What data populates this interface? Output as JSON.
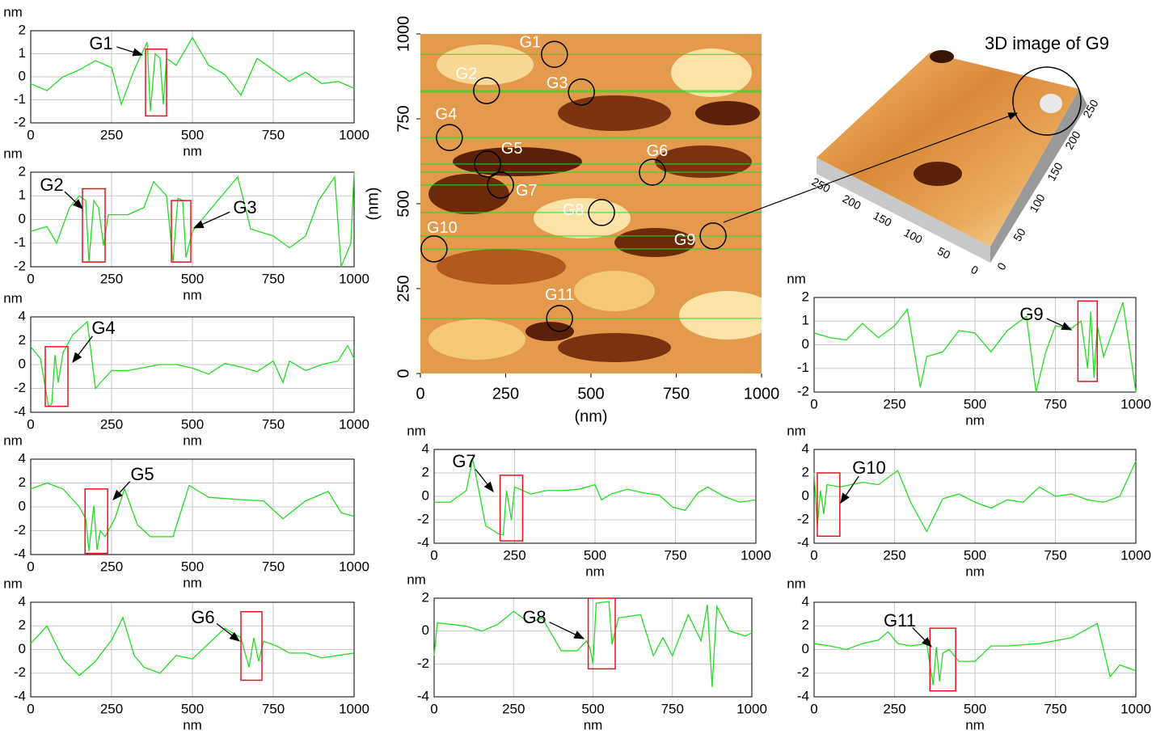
{
  "chart_data": [
    {
      "type": "line",
      "annotations": [
        "G1"
      ],
      "ylabel": "nm",
      "xlabel": "nm",
      "x": [
        0,
        50,
        100,
        150,
        200,
        250,
        280,
        320,
        360,
        370,
        385,
        400,
        410,
        420,
        450,
        500,
        550,
        600,
        650,
        700,
        750,
        800,
        850,
        900,
        950,
        1000
      ],
      "series": [
        {
          "color": "#22dd22",
          "values": [
            -0.3,
            -0.6,
            0,
            0.3,
            0.7,
            0.4,
            -1.2,
            0.3,
            1.5,
            -1.5,
            1.0,
            0.8,
            -1.2,
            0.8,
            0.5,
            1.7,
            0.5,
            0.1,
            -0.8,
            0.8,
            0.3,
            -0.2,
            0.2,
            -0.3,
            -0.2,
            -0.5
          ]
        }
      ],
      "xlim": [
        0,
        1000
      ],
      "ylim": [
        -2,
        2
      ],
      "xticks": [
        0,
        250,
        500,
        750,
        1000
      ],
      "yticks": [
        -2,
        -1,
        0,
        1,
        2
      ],
      "grid": true
    },
    {
      "type": "line",
      "annotations": [
        "G2",
        "G3"
      ],
      "ylabel": "nm",
      "xlabel": "nm",
      "x": [
        0,
        50,
        80,
        120,
        150,
        170,
        180,
        195,
        210,
        225,
        240,
        300,
        350,
        380,
        420,
        440,
        455,
        470,
        480,
        500,
        560,
        640,
        680,
        750,
        800,
        850,
        890,
        940,
        960,
        990,
        1000
      ],
      "series": [
        {
          "color": "#22dd22",
          "values": [
            -0.5,
            -0.3,
            -1.0,
            0.5,
            1.0,
            0.8,
            -1.8,
            0.8,
            0.5,
            -1.1,
            0.2,
            0.2,
            0.5,
            1.6,
            1.0,
            -1.8,
            0.9,
            0.8,
            -1.6,
            -0.5,
            0.5,
            1.8,
            -0.4,
            -0.7,
            -1.2,
            -0.7,
            0.8,
            1.8,
            -2.0,
            -1.0,
            2.0
          ]
        }
      ],
      "xlim": [
        0,
        1000
      ],
      "ylim": [
        -2,
        2
      ],
      "xticks": [
        0,
        250,
        500,
        750,
        1000
      ],
      "yticks": [
        -2,
        -1,
        0,
        1,
        2
      ],
      "grid": true
    },
    {
      "type": "line",
      "annotations": [
        "G4"
      ],
      "ylabel": "nm",
      "xlabel": "nm",
      "x": [
        0,
        30,
        55,
        65,
        75,
        85,
        100,
        130,
        175,
        200,
        250,
        300,
        400,
        450,
        500,
        550,
        600,
        650,
        700,
        750,
        780,
        800,
        850,
        900,
        950,
        980,
        1000
      ],
      "series": [
        {
          "color": "#22dd22",
          "values": [
            1.5,
            0.5,
            -3.5,
            -3.3,
            0.8,
            -1.5,
            1.0,
            2.5,
            3.6,
            -2.0,
            -0.5,
            -0.5,
            0,
            0,
            -0.3,
            -0.8,
            0.1,
            -0.2,
            -0.6,
            0.3,
            -1.5,
            0.3,
            -0.5,
            0,
            0.3,
            1.6,
            0.5
          ]
        }
      ],
      "xlim": [
        0,
        1000
      ],
      "ylim": [
        -4,
        4
      ],
      "xticks": [
        0,
        250,
        500,
        750,
        1000
      ],
      "yticks": [
        -4,
        -2,
        0,
        2,
        4
      ],
      "grid": true
    },
    {
      "type": "line",
      "annotations": [
        "G5"
      ],
      "ylabel": "nm",
      "xlabel": "nm",
      "x": [
        0,
        50,
        100,
        150,
        170,
        180,
        195,
        205,
        215,
        230,
        260,
        290,
        330,
        370,
        440,
        490,
        550,
        650,
        720,
        780,
        850,
        920,
        960,
        1000
      ],
      "series": [
        {
          "color": "#22dd22",
          "values": [
            1.5,
            2.0,
            1.5,
            0,
            -1.0,
            -3.7,
            0.1,
            -3.6,
            -2.0,
            -2.5,
            -1.0,
            1.5,
            -1.5,
            -2.5,
            -2.5,
            1.8,
            0.8,
            0.6,
            0.5,
            -1.0,
            0.5,
            1.3,
            -0.5,
            -0.8
          ]
        }
      ],
      "xlim": [
        0,
        1000
      ],
      "ylim": [
        -4,
        4
      ],
      "xticks": [
        0,
        250,
        500,
        750,
        1000
      ],
      "yticks": [
        -4,
        -2,
        0,
        2,
        4
      ],
      "grid": true
    },
    {
      "type": "line",
      "annotations": [
        "G6"
      ],
      "ylabel": "nm",
      "xlabel": "nm",
      "x": [
        0,
        50,
        100,
        150,
        200,
        250,
        285,
        320,
        350,
        400,
        450,
        500,
        550,
        600,
        650,
        675,
        690,
        705,
        720,
        760,
        800,
        850,
        900,
        950,
        1000
      ],
      "series": [
        {
          "color": "#22dd22",
          "values": [
            0.5,
            2.0,
            -0.8,
            -2.2,
            -1.0,
            0.8,
            2.7,
            -0.5,
            -1.5,
            -2.0,
            -0.5,
            -0.8,
            0.5,
            1.8,
            1.0,
            -1.5,
            1.0,
            -1.0,
            0.7,
            0.3,
            -0.3,
            -0.3,
            -0.7,
            -0.5,
            -0.3
          ]
        }
      ],
      "xlim": [
        0,
        1000
      ],
      "ylim": [
        -4,
        4
      ],
      "xticks": [
        0,
        250,
        500,
        750,
        1000
      ],
      "yticks": [
        -4,
        -2,
        0,
        2,
        4
      ],
      "grid": true
    },
    {
      "type": "line",
      "annotations": [
        "G7"
      ],
      "ylabel": "nm",
      "xlabel": "nm",
      "x": [
        0,
        50,
        100,
        120,
        160,
        200,
        215,
        225,
        240,
        250,
        300,
        350,
        400,
        450,
        500,
        520,
        550,
        600,
        650,
        700,
        740,
        780,
        820,
        850,
        900,
        950,
        1000
      ],
      "series": [
        {
          "color": "#22dd22",
          "values": [
            -0.5,
            -0.5,
            0.5,
            3.2,
            -2.5,
            -3.2,
            -3.3,
            0.5,
            -2.0,
            0.8,
            0.2,
            0.5,
            0.5,
            0.6,
            1.0,
            -0.3,
            0.2,
            0.6,
            0.3,
            0.1,
            -0.9,
            -1.2,
            0.3,
            0.8,
            0,
            -0.5,
            -0.3
          ]
        }
      ],
      "xlim": [
        0,
        1000
      ],
      "ylim": [
        -4,
        4
      ],
      "xticks": [
        0,
        250,
        500,
        750,
        1000
      ],
      "yticks": [
        -4,
        -2,
        0,
        2,
        4
      ],
      "grid": true
    },
    {
      "type": "line",
      "annotations": [
        "G8"
      ],
      "ylabel": "nm",
      "xlabel": "nm",
      "x": [
        0,
        10,
        100,
        150,
        200,
        250,
        300,
        340,
        370,
        400,
        450,
        480,
        490,
        500,
        510,
        550,
        560,
        580,
        650,
        690,
        720,
        750,
        800,
        840,
        860,
        875,
        890,
        930,
        980,
        1000
      ],
      "series": [
        {
          "color": "#22dd22",
          "values": [
            -1.5,
            0.5,
            0.3,
            0,
            0.4,
            1.2,
            0.5,
            0.8,
            -0.2,
            -1.2,
            -1.2,
            -0.6,
            -1.0,
            -2.0,
            1.7,
            1.8,
            -0.8,
            0.8,
            1.0,
            -1.5,
            -0.4,
            -1.5,
            1.0,
            -0.6,
            1.6,
            -3.4,
            1.5,
            0,
            -0.3,
            -0.1
          ]
        }
      ],
      "xlim": [
        0,
        1000
      ],
      "ylim": [
        -4,
        2
      ],
      "xticks": [
        0,
        250,
        500,
        750,
        1000
      ],
      "yticks": [
        -4,
        -2,
        0,
        2
      ],
      "grid": true
    },
    {
      "type": "line",
      "annotations": [
        "G9"
      ],
      "ylabel": "nm",
      "xlabel": "nm",
      "x": [
        0,
        50,
        100,
        150,
        200,
        250,
        290,
        330,
        350,
        400,
        450,
        500,
        550,
        600,
        660,
        690,
        720,
        750,
        800,
        830,
        850,
        860,
        870,
        880,
        900,
        960,
        1000
      ],
      "series": [
        {
          "color": "#22dd22",
          "values": [
            0.5,
            0.3,
            0.2,
            0.9,
            0.3,
            0.8,
            1.5,
            -1.8,
            -0.5,
            -0.3,
            0.6,
            0.5,
            -0.3,
            0.6,
            1.2,
            -2.0,
            -0.3,
            0.8,
            0.7,
            1.0,
            -1.0,
            1.4,
            -1.4,
            0.8,
            -0.5,
            1.8,
            -2.0
          ]
        }
      ],
      "xlim": [
        0,
        1000
      ],
      "ylim": [
        -2,
        2
      ],
      "xticks": [
        0,
        250,
        500,
        750,
        1000
      ],
      "yticks": [
        -2,
        -1,
        0,
        1,
        2
      ],
      "grid": true
    },
    {
      "type": "line",
      "annotations": [
        "G10"
      ],
      "ylabel": "nm",
      "xlabel": "nm",
      "x": [
        0,
        10,
        20,
        30,
        40,
        80,
        150,
        200,
        260,
        300,
        350,
        400,
        450,
        500,
        550,
        600,
        650,
        700,
        750,
        800,
        850,
        900,
        950,
        1000
      ],
      "series": [
        {
          "color": "#22dd22",
          "values": [
            2,
            -2.5,
            0.5,
            -1.5,
            1.0,
            0.8,
            1.2,
            1.0,
            2.2,
            -0.5,
            -3.0,
            -0.2,
            0.2,
            -0.5,
            -1.0,
            -0.3,
            -0.5,
            0.8,
            0,
            0.2,
            -0.3,
            -0.5,
            0,
            3.0
          ]
        }
      ],
      "xlim": [
        0,
        1000
      ],
      "ylim": [
        -4,
        4
      ],
      "xticks": [
        0,
        250,
        500,
        750,
        1000
      ],
      "yticks": [
        -4,
        -2,
        0,
        2,
        4
      ],
      "grid": true
    },
    {
      "type": "line",
      "annotations": [
        "G11"
      ],
      "ylabel": "nm",
      "xlabel": "nm",
      "x": [
        0,
        50,
        100,
        150,
        200,
        230,
        260,
        300,
        350,
        370,
        380,
        390,
        400,
        420,
        450,
        500,
        550,
        600,
        700,
        800,
        880,
        920,
        950,
        1000
      ],
      "series": [
        {
          "color": "#22dd22",
          "values": [
            0.5,
            0.3,
            0,
            0.5,
            0.8,
            1.5,
            0.5,
            0.3,
            0.5,
            -3.0,
            0.2,
            -2.7,
            -0.3,
            0,
            -1.0,
            -1.0,
            0.3,
            0.3,
            0.5,
            1.0,
            2.2,
            -2.3,
            -1.3,
            -1.8
          ]
        }
      ],
      "xlim": [
        0,
        1000
      ],
      "ylim": [
        -4,
        4
      ],
      "xticks": [
        0,
        250,
        500,
        750,
        1000
      ],
      "yticks": [
        -4,
        -2,
        0,
        2,
        4
      ],
      "grid": true
    },
    {
      "type": "image",
      "ylabel": "(nm)",
      "xlabel": "(nm)",
      "xlim": [
        0,
        1000
      ],
      "ylim": [
        0,
        1000
      ],
      "xticks": [
        0,
        250,
        500,
        750,
        1000
      ],
      "yticks": [
        0,
        250,
        500,
        750,
        1000
      ],
      "line_color": "#22dd22",
      "markers": [
        {
          "label": "G1",
          "x": 393,
          "y": 940
        },
        {
          "label": "G2",
          "x": 194,
          "y": 833
        },
        {
          "label": "G3",
          "x": 472,
          "y": 829
        },
        {
          "label": "G4",
          "x": 85,
          "y": 695
        },
        {
          "label": "G5",
          "x": 197,
          "y": 617
        },
        {
          "label": "G6",
          "x": 680,
          "y": 593
        },
        {
          "label": "G7",
          "x": 235,
          "y": 555
        },
        {
          "label": "G8",
          "x": 531,
          "y": 474
        },
        {
          "label": "G9",
          "x": 858,
          "y": 405
        },
        {
          "label": "G10",
          "x": 40,
          "y": 367
        },
        {
          "label": "G11",
          "x": 408,
          "y": 162
        }
      ]
    },
    {
      "type": "surface3d",
      "title": "3D image of G9",
      "xticks": [
        250,
        200,
        150,
        100,
        50,
        0
      ],
      "yticks": [
        250,
        200,
        150,
        100,
        50,
        0
      ]
    }
  ]
}
